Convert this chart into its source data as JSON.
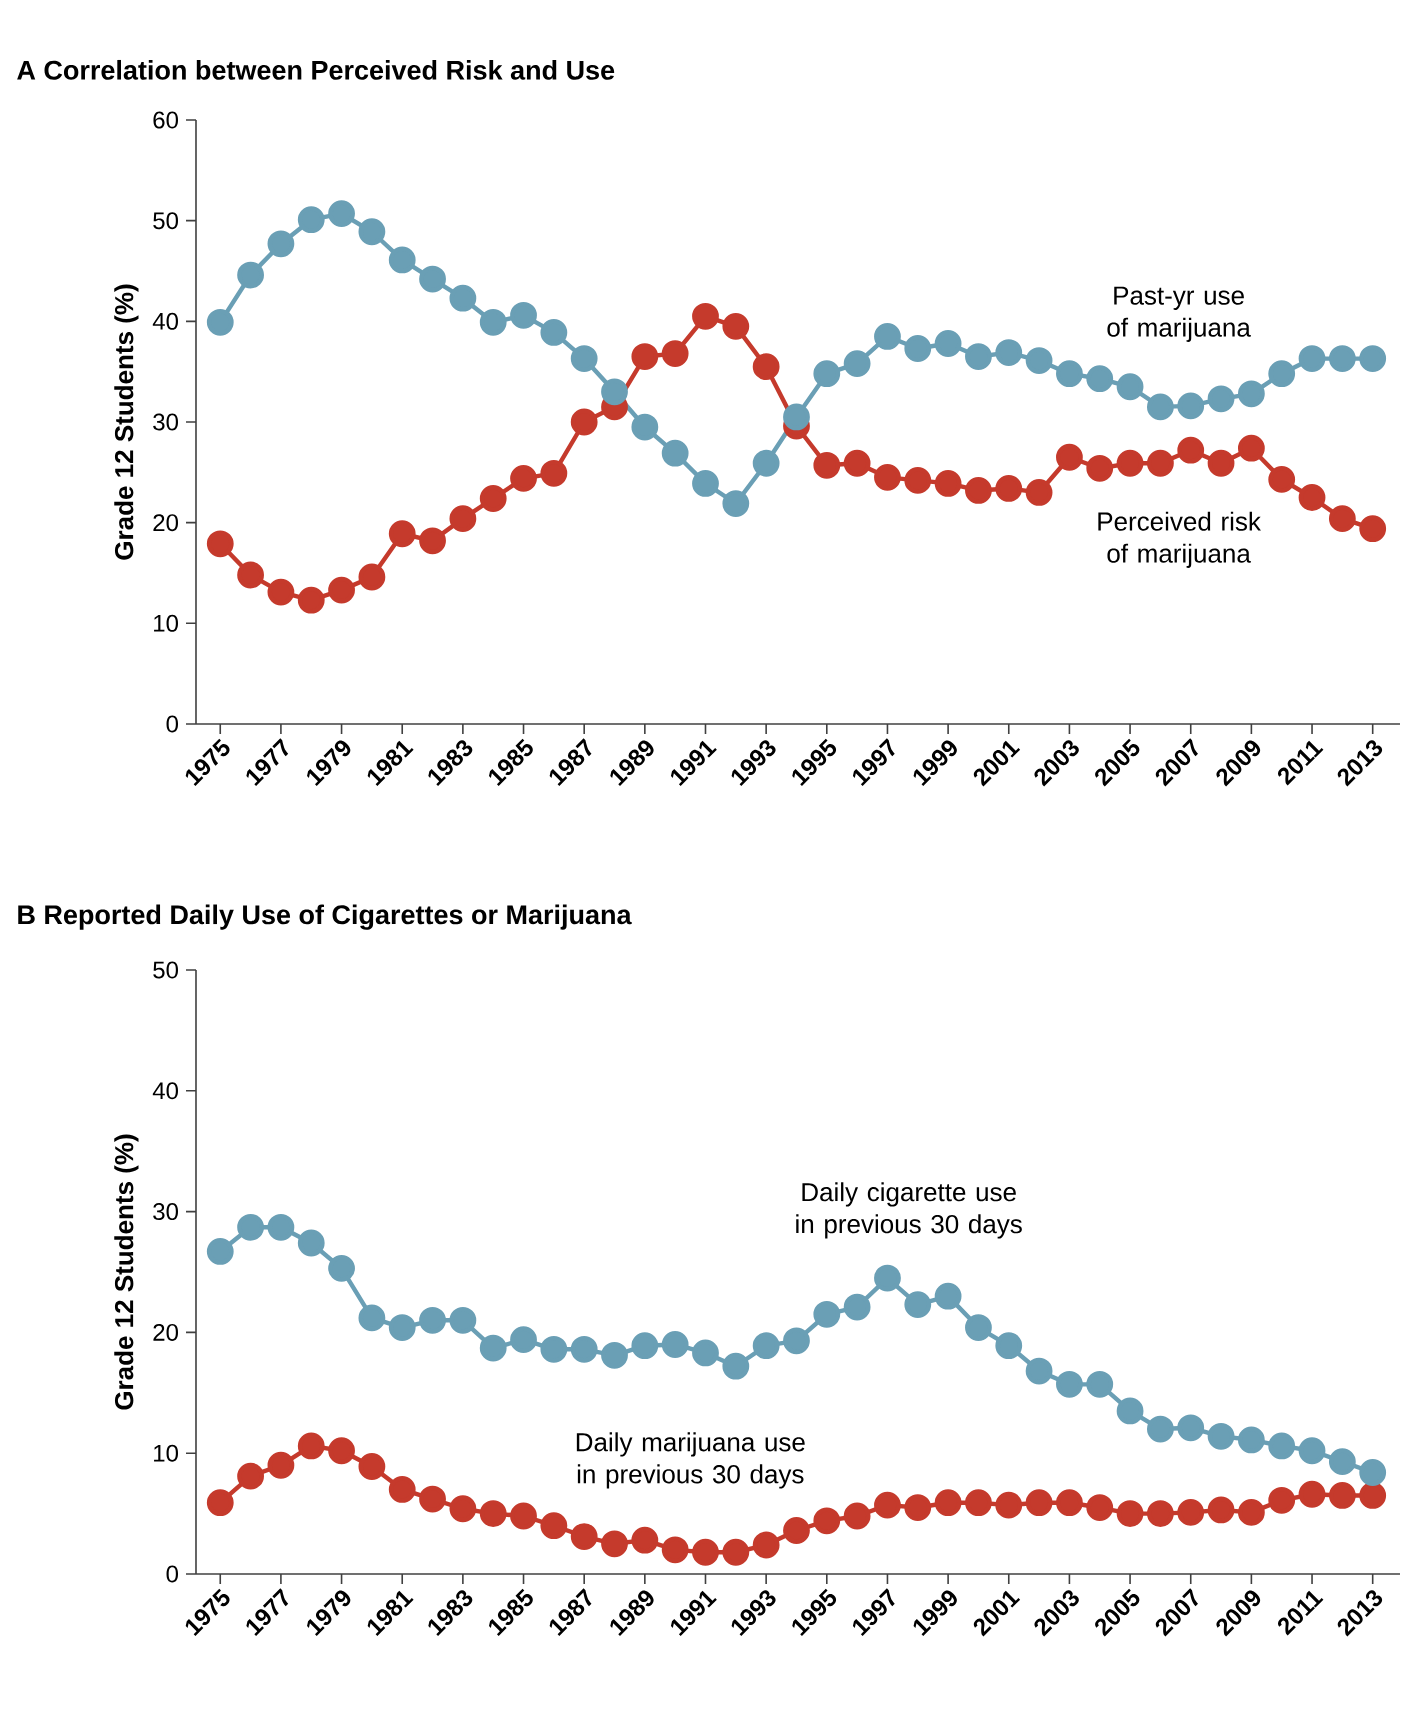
{
  "chart_data": [
    {
      "type": "line",
      "title": "A  Correlation between Perceived Risk and Use",
      "ylabel": "Grade 12 Students (%)",
      "x": [
        1975,
        1976,
        1977,
        1978,
        1979,
        1980,
        1981,
        1982,
        1983,
        1984,
        1985,
        1986,
        1987,
        1988,
        1989,
        1990,
        1991,
        1992,
        1993,
        1994,
        1995,
        1996,
        1997,
        1998,
        1999,
        2000,
        2001,
        2002,
        2003,
        2004,
        2005,
        2006,
        2007,
        2008,
        2009,
        2010,
        2011,
        2012,
        2013
      ],
      "xlim": [
        1974.2,
        2013.9
      ],
      "xticks": [
        1975,
        1977,
        1979,
        1981,
        1983,
        1985,
        1987,
        1989,
        1991,
        1993,
        1995,
        1997,
        1999,
        2001,
        2003,
        2005,
        2007,
        2009,
        2011,
        2013
      ],
      "ylim": [
        0,
        60
      ],
      "yticks": [
        0,
        10,
        20,
        30,
        40,
        50,
        60
      ],
      "marker": "circle",
      "series": [
        {
          "name": "Past-yr use of marijuana",
          "color": "#6a9fb5",
          "values": [
            39.9,
            44.6,
            47.7,
            50.1,
            50.7,
            48.9,
            46.1,
            44.2,
            42.3,
            39.9,
            40.6,
            38.9,
            36.3,
            33.0,
            29.5,
            26.9,
            23.9,
            21.9,
            25.9,
            30.5,
            34.8,
            35.8,
            38.5,
            37.3,
            37.8,
            36.5,
            36.9,
            36.1,
            34.8,
            34.3,
            33.5,
            31.5,
            31.6,
            32.3,
            32.8,
            34.8,
            36.3,
            36.3,
            36.3
          ]
        },
        {
          "name": "Perceived risk of marijuana",
          "color": "#c53a2c",
          "values": [
            17.9,
            14.8,
            13.1,
            12.3,
            13.3,
            14.6,
            18.9,
            18.2,
            20.4,
            22.4,
            24.4,
            24.9,
            30.0,
            31.5,
            36.5,
            36.8,
            40.5,
            39.5,
            35.5,
            29.6,
            25.7,
            25.9,
            24.5,
            24.2,
            23.9,
            23.2,
            23.4,
            23.0,
            26.5,
            25.4,
            25.9,
            25.9,
            27.2,
            25.9,
            27.4,
            24.3,
            22.5,
            20.4,
            19.4
          ]
        }
      ]
    },
    {
      "type": "line",
      "title": "B  Reported Daily Use of Cigarettes or Marijuana",
      "ylabel": "Grade 12 Students (%)",
      "x": [
        1975,
        1976,
        1977,
        1978,
        1979,
        1980,
        1981,
        1982,
        1983,
        1984,
        1985,
        1986,
        1987,
        1988,
        1989,
        1990,
        1991,
        1992,
        1993,
        1994,
        1995,
        1996,
        1997,
        1998,
        1999,
        2000,
        2001,
        2002,
        2003,
        2004,
        2005,
        2006,
        2007,
        2008,
        2009,
        2010,
        2011,
        2012,
        2013
      ],
      "xlim": [
        1974.2,
        2013.9
      ],
      "xticks": [
        1975,
        1977,
        1979,
        1981,
        1983,
        1985,
        1987,
        1989,
        1991,
        1993,
        1995,
        1997,
        1999,
        2001,
        2003,
        2005,
        2007,
        2009,
        2011,
        2013
      ],
      "ylim": [
        0,
        50
      ],
      "yticks": [
        0,
        10,
        20,
        30,
        40,
        50
      ],
      "marker": "circle",
      "series": [
        {
          "name": "Daily cigarette use in previous 30 days",
          "color": "#6a9fb5",
          "values": [
            26.7,
            28.7,
            28.7,
            27.4,
            25.3,
            21.2,
            20.4,
            21.0,
            21.0,
            18.7,
            19.4,
            18.6,
            18.6,
            18.1,
            18.9,
            19.0,
            18.3,
            17.2,
            18.9,
            19.3,
            21.5,
            22.1,
            24.5,
            22.3,
            23.0,
            20.4,
            18.9,
            16.8,
            15.7,
            15.7,
            13.5,
            12.0,
            12.1,
            11.4,
            11.1,
            10.6,
            10.2,
            9.3,
            8.4
          ]
        },
        {
          "name": "Daily marijuana use in previous 30 days",
          "color": "#c53a2c",
          "values": [
            5.9,
            8.1,
            9.0,
            10.6,
            10.2,
            8.9,
            7.0,
            6.2,
            5.4,
            5.0,
            4.8,
            4.0,
            3.1,
            2.5,
            2.8,
            2.0,
            1.8,
            1.8,
            2.4,
            3.6,
            4.4,
            4.8,
            5.7,
            5.5,
            5.9,
            5.9,
            5.7,
            5.9,
            5.9,
            5.5,
            5.0,
            5.0,
            5.1,
            5.3,
            5.1,
            6.1,
            6.6,
            6.5,
            6.5
          ]
        }
      ]
    }
  ]
}
